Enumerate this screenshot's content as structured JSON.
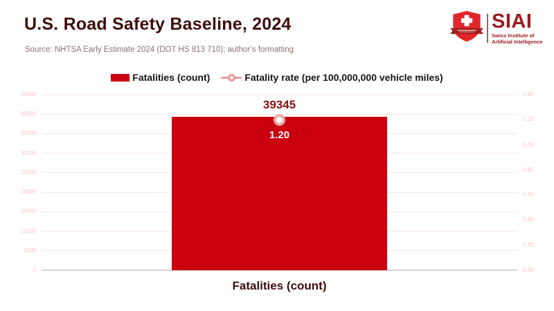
{
  "header": {
    "title": "U.S. Road Safety Baseline, 2024",
    "source": "Source: NHTSA Early Estimate 2024 (DOT HS 813 710); author’s formatting"
  },
  "logo": {
    "acronym": "SIAI",
    "subtitle_line1": "Swiss Institute of",
    "subtitle_line2": "Artificial Intelligence"
  },
  "legend": [
    {
      "label": "Fatalities (count)",
      "type": "bar"
    },
    {
      "label": "Fatality rate (per 100,000,000 vehicle miles)",
      "type": "line"
    }
  ],
  "chart_data": {
    "type": "bar",
    "categories": [
      "Fatalities (count)"
    ],
    "series": [
      {
        "name": "Fatalities (count)",
        "type": "bar",
        "axis": "left",
        "values": [
          39345
        ],
        "data_labels": [
          "39345"
        ]
      },
      {
        "name": "Fatality rate (per 100,000,000 vehicle miles)",
        "type": "line",
        "axis": "right",
        "values": [
          1.2
        ],
        "data_labels": [
          "1.20"
        ]
      }
    ],
    "xlabel": "Fatalities (count)",
    "axes": {
      "left": {
        "min": 0,
        "max": 45000,
        "step": 5000,
        "decimals": 0
      },
      "right": {
        "min": 0,
        "max": 1.4,
        "step": 0.2,
        "decimals": 2
      }
    },
    "grid": true,
    "legend_position": "top"
  },
  "colors": {
    "bar": "#CB000F",
    "line_marker": "#E89B9B",
    "marker_ring": "#E6AFAF",
    "title": "#3F0D0D",
    "source": "#8E7070",
    "tick_label": "#F5C6C6",
    "gridline": "#FAE3E3",
    "baseline": "#D4D4D4",
    "bar_value_label": "#8B0E0E",
    "rate_value_label": "#FFFFFF",
    "logo_red": "#E0262C",
    "logo_banner_red": "#A61B1B",
    "logo_dark_red": "#9C1B20"
  }
}
